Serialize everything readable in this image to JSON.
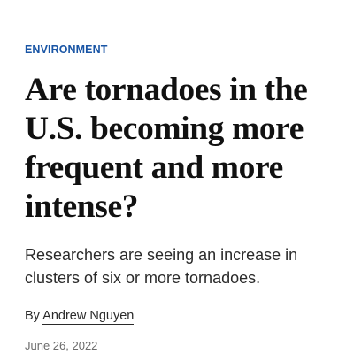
{
  "article": {
    "section_label": "ENVIRONMENT",
    "headline": "Are tornadoes in the U.S. becoming more frequent and more intense?",
    "deck": "Researchers are seeing an increase in clusters of six or more tornadoes.",
    "byline_prefix": "By",
    "author": "Andrew Nguyen",
    "date": "June 26, 2022"
  },
  "colors": {
    "section_label": "#1955a5",
    "headline": "#111111",
    "body_text": "#2a2a2a",
    "date_text": "#6b6b6b",
    "background": "#ffffff"
  }
}
